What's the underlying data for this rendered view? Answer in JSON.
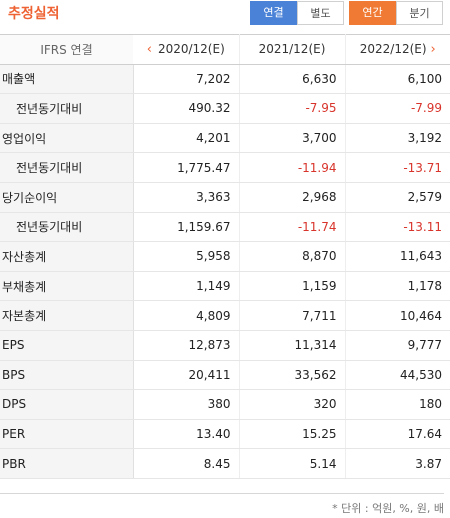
{
  "header": {
    "title": "추정실적",
    "buttons": {
      "consolidated": "연결",
      "separate": "별도",
      "annual": "연간",
      "quarterly": "분기"
    }
  },
  "table": {
    "label_header": "IFRS 연결",
    "columns": [
      "2020/12(E)",
      "2021/12(E)",
      "2022/12(E)"
    ],
    "rows": [
      {
        "label": "매출액",
        "values": [
          "7,202",
          "6,630",
          "6,100"
        ]
      },
      {
        "label": "전년동기대비",
        "values": [
          "490.32",
          "-7.95",
          "-7.99"
        ]
      },
      {
        "label": "영업이익",
        "values": [
          "4,201",
          "3,700",
          "3,192"
        ]
      },
      {
        "label": "전년동기대비",
        "values": [
          "1,775.47",
          "-11.94",
          "-13.71"
        ]
      },
      {
        "label": "당기순이익",
        "values": [
          "3,363",
          "2,968",
          "2,579"
        ]
      },
      {
        "label": "전년동기대비",
        "values": [
          "1,159.67",
          "-11.74",
          "-13.11"
        ]
      },
      {
        "label": "자산총계",
        "values": [
          "5,958",
          "8,870",
          "11,643"
        ]
      },
      {
        "label": "부채총계",
        "values": [
          "1,149",
          "1,159",
          "1,178"
        ]
      },
      {
        "label": "자본총계",
        "values": [
          "4,809",
          "7,711",
          "10,464"
        ]
      },
      {
        "label": "EPS",
        "values": [
          "12,873",
          "11,314",
          "9,777"
        ]
      },
      {
        "label": "BPS",
        "values": [
          "20,411",
          "33,562",
          "44,530"
        ]
      },
      {
        "label": "DPS",
        "values": [
          "380",
          "320",
          "180"
        ]
      },
      {
        "label": "PER",
        "values": [
          "13.40",
          "15.25",
          "17.64"
        ]
      },
      {
        "label": "PBR",
        "values": [
          "8.45",
          "5.14",
          "3.87"
        ]
      }
    ]
  },
  "footer": {
    "unit_note": "* 단위 : 억원, %, 원, 배"
  },
  "colors": {
    "accent_orange": "#ee6233",
    "blue": "#4a82d7",
    "negative": "#d8342b"
  },
  "icons": {
    "prev": "chevron-left-icon",
    "next": "chevron-right-icon"
  }
}
